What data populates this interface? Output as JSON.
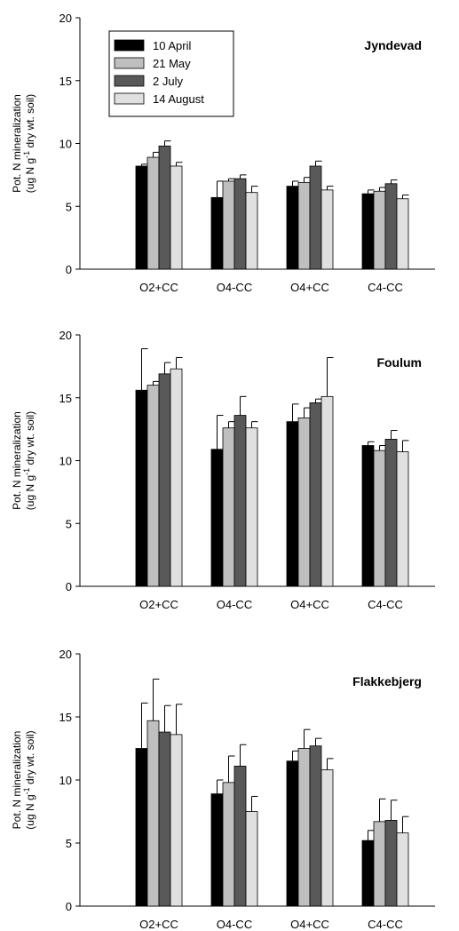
{
  "series_colors": [
    "#000000",
    "#bfbfbf",
    "#595959",
    "#e0e0e0"
  ],
  "legend": [
    "10 April",
    "21 May",
    "2 July",
    "14 August"
  ],
  "chart_data": [
    {
      "type": "bar",
      "title": "Jyndevad",
      "ylabel_line1": "Pot. N mineralization",
      "ylabel_line2_pre": "(ug N g",
      "ylabel_sup": "-1",
      "ylabel_line2_post": " dry wt. soil)",
      "ylim": [
        0,
        20
      ],
      "yticks": [
        "0",
        "5",
        "10",
        "15",
        "20"
      ],
      "categories": [
        "O2+CC",
        "O4-CC",
        "O4+CC",
        "C4-CC"
      ],
      "legend_shown": true,
      "series": [
        {
          "name": "10 April",
          "values": [
            8.2,
            5.7,
            6.6,
            6.0
          ],
          "errors": [
            0.15,
            1.3,
            0.4,
            0.3
          ]
        },
        {
          "name": "21 May",
          "values": [
            8.9,
            7.0,
            6.9,
            6.2
          ],
          "errors": [
            0.4,
            0.2,
            0.4,
            0.3
          ]
        },
        {
          "name": "2 July",
          "values": [
            9.8,
            7.2,
            8.2,
            6.8
          ],
          "errors": [
            0.4,
            0.3,
            0.4,
            0.3
          ]
        },
        {
          "name": "14 August",
          "values": [
            8.2,
            6.1,
            6.3,
            5.6
          ],
          "errors": [
            0.3,
            0.5,
            0.3,
            0.3
          ]
        }
      ]
    },
    {
      "type": "bar",
      "title": "Foulum",
      "ylabel_line1": "Pot. N mineralization",
      "ylabel_line2_pre": "(ug N g",
      "ylabel_sup": "-1",
      "ylabel_line2_post": " dry wt. soil)",
      "ylim": [
        0,
        20
      ],
      "yticks": [
        "0",
        "5",
        "10",
        "15",
        "20"
      ],
      "categories": [
        "O2+CC",
        "O4-CC",
        "O4+CC",
        "C4-CC"
      ],
      "legend_shown": false,
      "series": [
        {
          "name": "10 April",
          "values": [
            15.6,
            10.9,
            13.1,
            11.2
          ],
          "errors": [
            3.3,
            2.7,
            1.4,
            0.3
          ]
        },
        {
          "name": "21 May",
          "values": [
            16.0,
            12.6,
            13.4,
            10.8
          ],
          "errors": [
            0.3,
            0.5,
            0.8,
            0.4
          ]
        },
        {
          "name": "2 July",
          "values": [
            16.9,
            13.6,
            14.6,
            11.7
          ],
          "errors": [
            0.9,
            1.5,
            0.3,
            0.7
          ]
        },
        {
          "name": "14 August",
          "values": [
            17.3,
            12.6,
            15.1,
            10.7
          ],
          "errors": [
            0.9,
            0.5,
            3.1,
            0.9
          ]
        }
      ]
    },
    {
      "type": "bar",
      "title": "Flakkebjerg",
      "ylabel_line1": "Pot. N mineralization",
      "ylabel_line2_pre": "(ug N g",
      "ylabel_sup": "-1",
      "ylabel_line2_post": " dry wt. soil)",
      "ylim": [
        0,
        20
      ],
      "yticks": [
        "0",
        "5",
        "10",
        "15",
        "20"
      ],
      "categories": [
        "O2+CC",
        "O4-CC",
        "O4+CC",
        "C4-CC"
      ],
      "legend_shown": false,
      "series": [
        {
          "name": "10 April",
          "values": [
            12.5,
            8.9,
            11.5,
            5.2
          ],
          "errors": [
            3.6,
            1.1,
            0.8,
            0.8
          ]
        },
        {
          "name": "21 May",
          "values": [
            14.7,
            9.8,
            12.5,
            6.7
          ],
          "errors": [
            3.3,
            2.1,
            1.5,
            1.8
          ]
        },
        {
          "name": "2 July",
          "values": [
            13.8,
            11.1,
            12.7,
            6.8
          ],
          "errors": [
            2.1,
            1.7,
            0.6,
            1.6
          ]
        },
        {
          "name": "14 August",
          "values": [
            13.6,
            7.5,
            10.8,
            5.8
          ],
          "errors": [
            2.4,
            1.2,
            0.9,
            1.3
          ]
        }
      ]
    }
  ]
}
